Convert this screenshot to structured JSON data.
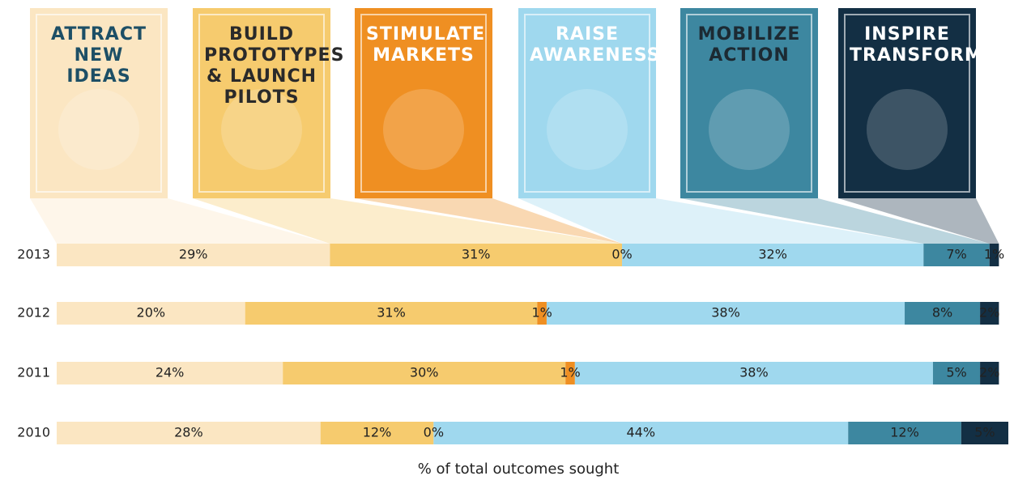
{
  "chart_data": {
    "type": "stacked-barh",
    "categories": [
      "2013",
      "2012",
      "2011",
      "2010"
    ],
    "xlabel": "% of total outcomes sought",
    "xlim": [
      0,
      101
    ],
    "series": [
      {
        "name": "ATTRACT NEW IDEAS",
        "color": "#fbe6c2",
        "values": [
          29,
          20,
          24,
          28
        ],
        "value_labels": [
          "29%",
          "20%",
          "24%",
          "28%"
        ]
      },
      {
        "name": "BUILD PROTOTYPES & LAUNCH PILOTS",
        "color": "#f6cb6e",
        "values": [
          31,
          31,
          30,
          12
        ],
        "value_labels": [
          "31%",
          "31%",
          "30%",
          "12%"
        ]
      },
      {
        "name": "STIMULATE MARKETS",
        "color": "#ef8f22",
        "values": [
          0,
          1,
          1,
          0
        ],
        "value_labels": [
          "0%",
          "1%",
          "1%",
          "0%"
        ]
      },
      {
        "name": "RAISE AWARENESS",
        "color": "#9fd8ee",
        "values": [
          32,
          38,
          38,
          44
        ],
        "value_labels": [
          "32%",
          "38%",
          "38%",
          "44%"
        ]
      },
      {
        "name": "MOBILIZE ACTION",
        "color": "#3d87a0",
        "values": [
          7,
          8,
          5,
          12
        ],
        "value_labels": [
          "7%",
          "8%",
          "5%",
          "12%"
        ]
      },
      {
        "name": "INSPIRE TRANSFORMATION",
        "color": "#132f44",
        "values": [
          1,
          2,
          2,
          5
        ],
        "value_labels": [
          "1%",
          "2%",
          "2%",
          "5%"
        ]
      }
    ]
  }
}
